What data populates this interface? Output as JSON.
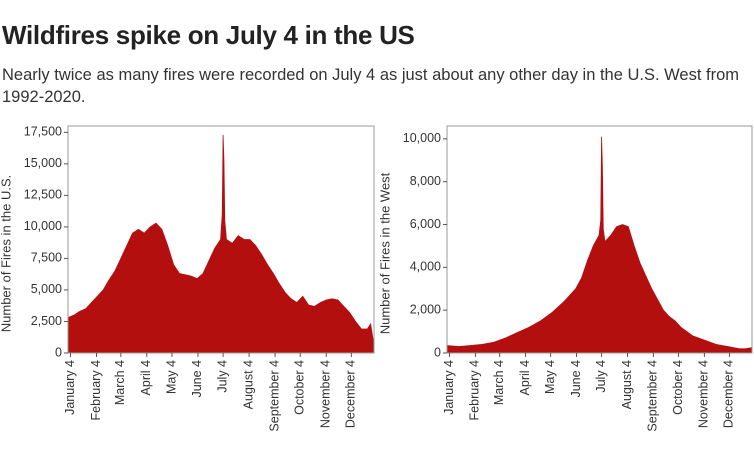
{
  "title": "Wildfires spike on July 4 in the US",
  "subtitle": "Nearly twice as many fires were recorded on July 4 as just about any other day in the U.S. West from 1992-2020.",
  "chart_data": [
    {
      "type": "area",
      "color": "#b30f0f",
      "ylabel": "Number of Fires in the U.S.",
      "x": [
        1,
        8,
        15,
        22,
        29,
        36,
        43,
        50,
        57,
        64,
        71,
        78,
        85,
        92,
        99,
        106,
        113,
        120,
        127,
        134,
        141,
        148,
        155,
        162,
        169,
        176,
        183,
        185,
        186,
        187,
        188,
        190,
        197,
        204,
        211,
        218,
        225,
        232,
        239,
        246,
        253,
        260,
        267,
        274,
        281,
        288,
        295,
        302,
        309,
        316,
        323,
        330,
        337,
        344,
        351,
        358,
        362,
        366
      ],
      "values": [
        2800,
        3000,
        3300,
        3500,
        4000,
        4500,
        5000,
        5800,
        6500,
        7500,
        8500,
        9500,
        9800,
        9500,
        10000,
        10300,
        9800,
        8500,
        7000,
        6300,
        6200,
        6100,
        5900,
        6300,
        7300,
        8300,
        9000,
        11000,
        17300,
        15300,
        10500,
        9000,
        8700,
        9300,
        9000,
        9000,
        8500,
        7800,
        7000,
        6300,
        5500,
        4800,
        4300,
        4000,
        4500,
        3800,
        3700,
        4000,
        4200,
        4300,
        4200,
        3700,
        3200,
        2500,
        1900,
        1900,
        2300,
        600
      ],
      "xlim": [
        1,
        366
      ],
      "xticks": [
        {
          "value": 4,
          "label": "January 4"
        },
        {
          "value": 35,
          "label": "February 4"
        },
        {
          "value": 64,
          "label": "March 4"
        },
        {
          "value": 95,
          "label": "April 4"
        },
        {
          "value": 125,
          "label": "May 4"
        },
        {
          "value": 156,
          "label": "June 4"
        },
        {
          "value": 186,
          "label": "July 4"
        },
        {
          "value": 217,
          "label": "August 4"
        },
        {
          "value": 248,
          "label": "September 4"
        },
        {
          "value": 278,
          "label": "October 4"
        },
        {
          "value": 309,
          "label": "November 4"
        },
        {
          "value": 339,
          "label": "December 4"
        }
      ],
      "ylim": [
        0,
        18000
      ],
      "yticks": [
        0,
        {
          "value": 2500,
          "label": "2,500"
        },
        {
          "value": 5000,
          "label": "5,000"
        },
        {
          "value": 7500,
          "label": "7,500"
        },
        {
          "value": 10000,
          "label": "10,000"
        },
        {
          "value": 12500,
          "label": "12,500"
        },
        {
          "value": 15000,
          "label": "15,000"
        },
        {
          "value": 17500,
          "label": "17,500"
        }
      ]
    },
    {
      "type": "area",
      "color": "#b30f0f",
      "ylabel": "Number of Fires in the West",
      "x": [
        1,
        15,
        29,
        43,
        57,
        71,
        85,
        99,
        113,
        127,
        141,
        155,
        162,
        169,
        176,
        183,
        185,
        186,
        187,
        188,
        190,
        197,
        204,
        211,
        218,
        225,
        232,
        239,
        246,
        253,
        260,
        267,
        274,
        281,
        288,
        295,
        302,
        309,
        316,
        323,
        330,
        337,
        344,
        351,
        358,
        366
      ],
      "values": [
        350,
        300,
        350,
        400,
        500,
        700,
        950,
        1200,
        1500,
        1900,
        2400,
        3000,
        3500,
        4300,
        5000,
        5500,
        6200,
        10100,
        8600,
        5800,
        5200,
        5500,
        5900,
        6000,
        5900,
        5000,
        4200,
        3600,
        3000,
        2500,
        2000,
        1700,
        1500,
        1200,
        1000,
        800,
        700,
        600,
        500,
        400,
        350,
        300,
        250,
        200,
        200,
        250
      ],
      "xlim": [
        1,
        366
      ],
      "xticks": [
        {
          "value": 4,
          "label": "January 4"
        },
        {
          "value": 35,
          "label": "February 4"
        },
        {
          "value": 64,
          "label": "March 4"
        },
        {
          "value": 95,
          "label": "April 4"
        },
        {
          "value": 125,
          "label": "May 4"
        },
        {
          "value": 156,
          "label": "June 4"
        },
        {
          "value": 186,
          "label": "July 4"
        },
        {
          "value": 217,
          "label": "August 4"
        },
        {
          "value": 248,
          "label": "September 4"
        },
        {
          "value": 278,
          "label": "October 4"
        },
        {
          "value": 309,
          "label": "November 4"
        },
        {
          "value": 339,
          "label": "December 4"
        }
      ],
      "ylim": [
        0,
        10600
      ],
      "yticks": [
        0,
        {
          "value": 2000,
          "label": "2,000"
        },
        {
          "value": 4000,
          "label": "4,000"
        },
        {
          "value": 6000,
          "label": "6,000"
        },
        {
          "value": 8000,
          "label": "8,000"
        },
        {
          "value": 10000,
          "label": "10,000"
        }
      ]
    }
  ]
}
